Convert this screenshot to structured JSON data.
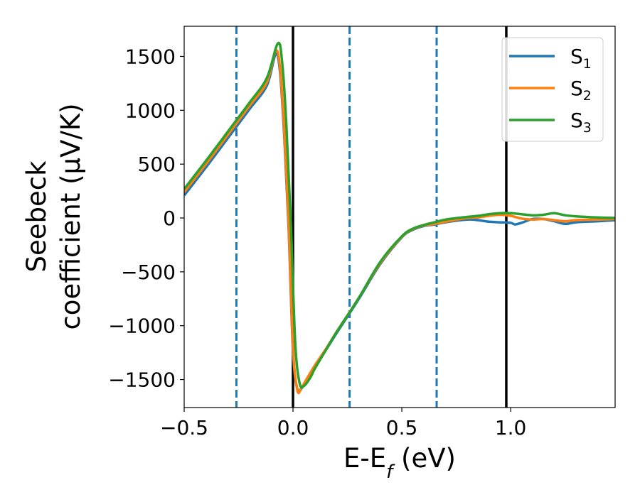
{
  "chart_data": {
    "type": "line",
    "title": "",
    "xlabel": {
      "main": "E-E",
      "sub": "f",
      "tail": " (eV)"
    },
    "ylabel": {
      "line1": "Seebeck",
      "line2": "coefficient  (μV/K)"
    },
    "xlim": [
      -0.5,
      1.48
    ],
    "ylim": [
      -1760,
      1780
    ],
    "xticks": [
      -0.5,
      0.0,
      0.5,
      1.0
    ],
    "xtick_labels": [
      "−0.5",
      "0.0",
      "0.5",
      "1.0"
    ],
    "yticks": [
      -1500,
      -1000,
      -500,
      0,
      500,
      1000,
      1500
    ],
    "ytick_labels": [
      "−1500",
      "−1000",
      "−500",
      "0",
      "500",
      "1000",
      "1500"
    ],
    "grid": false,
    "legend_position": "top-right",
    "vertical_lines": [
      {
        "x": -0.26,
        "style": "dashed",
        "color": "#1f77b4"
      },
      {
        "x": 0.0,
        "style": "solid",
        "color": "#000000"
      },
      {
        "x": 0.26,
        "style": "dashed",
        "color": "#1f77b4"
      },
      {
        "x": 0.66,
        "style": "dashed",
        "color": "#1f77b4"
      },
      {
        "x": 0.98,
        "style": "solid",
        "color": "#000000"
      }
    ],
    "series": [
      {
        "name": "S",
        "sub": "1",
        "color": "#1f77b4",
        "x": [
          -0.5,
          -0.4,
          -0.3,
          -0.2,
          -0.12,
          -0.08,
          -0.06,
          -0.04,
          -0.02,
          0.0,
          0.02,
          0.04,
          0.07,
          0.1,
          0.15,
          0.2,
          0.3,
          0.4,
          0.5,
          0.55,
          0.6,
          0.65,
          0.7,
          0.8,
          0.85,
          0.9,
          0.95,
          1.0,
          1.02,
          1.05,
          1.1,
          1.15,
          1.2,
          1.25,
          1.3,
          1.4,
          1.48
        ],
        "y": [
          210,
          470,
          740,
          1010,
          1230,
          1520,
          1360,
          750,
          -100,
          -1240,
          -1590,
          -1580,
          -1480,
          -1380,
          -1230,
          -1070,
          -760,
          -430,
          -180,
          -110,
          -75,
          -60,
          -40,
          -15,
          -20,
          -35,
          -40,
          -45,
          -60,
          -45,
          -10,
          -10,
          -30,
          -55,
          -40,
          -30,
          -20
        ]
      },
      {
        "name": "S",
        "sub": "2",
        "color": "#ff7f0e",
        "x": [
          -0.5,
          -0.4,
          -0.3,
          -0.2,
          -0.12,
          -0.08,
          -0.06,
          -0.04,
          -0.02,
          0.0,
          0.02,
          0.04,
          0.07,
          0.1,
          0.15,
          0.2,
          0.3,
          0.4,
          0.5,
          0.55,
          0.6,
          0.65,
          0.7,
          0.8,
          0.85,
          0.9,
          0.95,
          1.0,
          1.05,
          1.1,
          1.15,
          1.2,
          1.25,
          1.3,
          1.4,
          1.48
        ],
        "y": [
          240,
          500,
          770,
          1040,
          1260,
          1550,
          1400,
          800,
          -50,
          -1200,
          -1600,
          -1570,
          -1470,
          -1370,
          -1220,
          -1060,
          -750,
          -420,
          -175,
          -105,
          -70,
          -55,
          -35,
          0,
          5,
          20,
          30,
          20,
          -5,
          -15,
          -10,
          -20,
          -30,
          -20,
          -15,
          -10
        ]
      },
      {
        "name": "S",
        "sub": "3",
        "color": "#2ca02c",
        "x": [
          -0.5,
          -0.4,
          -0.3,
          -0.2,
          -0.12,
          -0.07,
          -0.05,
          -0.03,
          -0.01,
          0.01,
          0.03,
          0.05,
          0.08,
          0.1,
          0.15,
          0.2,
          0.3,
          0.4,
          0.5,
          0.55,
          0.6,
          0.65,
          0.7,
          0.8,
          0.85,
          0.9,
          0.95,
          1.0,
          1.05,
          1.1,
          1.15,
          1.2,
          1.25,
          1.3,
          1.4,
          1.48
        ],
        "y": [
          270,
          530,
          800,
          1070,
          1300,
          1620,
          1450,
          850,
          -50,
          -1150,
          -1530,
          -1560,
          -1480,
          -1400,
          -1230,
          -1060,
          -750,
          -410,
          -170,
          -100,
          -65,
          -40,
          -15,
          10,
          20,
          35,
          45,
          45,
          35,
          25,
          30,
          45,
          25,
          15,
          5,
          0
        ]
      }
    ]
  }
}
